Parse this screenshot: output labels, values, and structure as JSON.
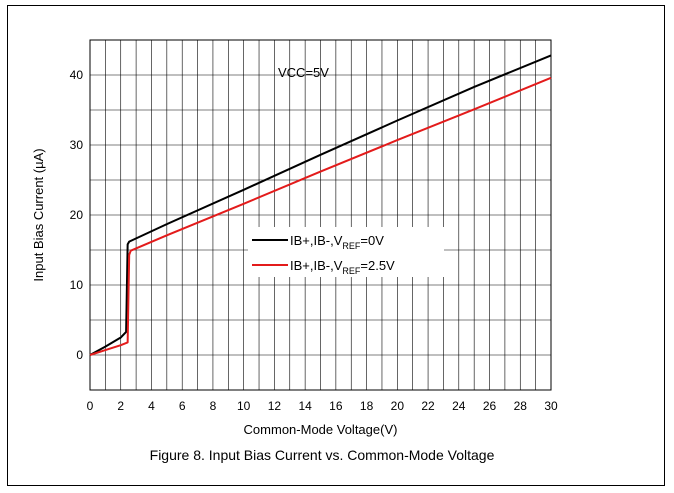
{
  "chart_data": {
    "type": "line",
    "caption": "Figure 8. Input Bias Current vs. Common-Mode Voltage",
    "xlabel": "Common-Mode Voltage(V)",
    "ylabel": "Input Bias Current (µA)",
    "xlim": [
      0,
      30
    ],
    "ylim": [
      -5,
      45
    ],
    "x_ticks": [
      0,
      2,
      4,
      6,
      8,
      10,
      12,
      14,
      16,
      18,
      20,
      22,
      24,
      26,
      28,
      30
    ],
    "y_ticks": [
      0,
      10,
      20,
      30,
      40
    ],
    "grid": true,
    "annotation": "VCC=5V",
    "legend_placement": "center",
    "series": [
      {
        "label_main": "IB+,IB-,V",
        "label_sub": "REF",
        "label_tail": "=0V",
        "color": "#000000",
        "x": [
          0,
          1,
          2,
          2.35,
          2.45,
          2.55,
          5,
          10,
          15,
          20,
          25,
          30
        ],
        "y": [
          0,
          1.2,
          2.5,
          3.3,
          15.8,
          16.2,
          18.7,
          23.6,
          28.6,
          33.5,
          38.3,
          42.8
        ]
      },
      {
        "label_main": "IB+,IB-,V",
        "label_sub": "REF",
        "label_tail": "=2.5V",
        "color": "#e31b1b",
        "x": [
          0,
          1,
          2,
          2.45,
          2.55,
          2.65,
          5,
          10,
          15,
          20,
          25,
          30
        ],
        "y": [
          0,
          0.7,
          1.4,
          1.8,
          14.3,
          14.9,
          17.1,
          21.6,
          26.2,
          30.7,
          35.1,
          39.6
        ]
      }
    ]
  }
}
